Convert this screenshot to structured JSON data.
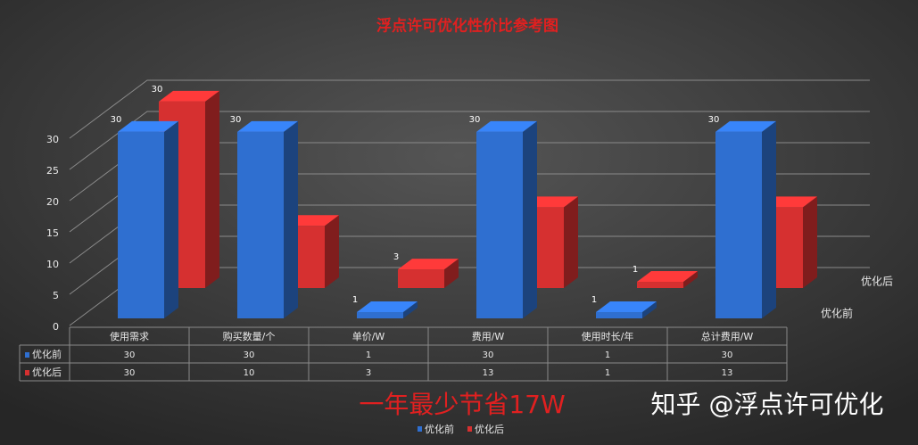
{
  "chart_data": {
    "type": "bar3d",
    "title": "浮点许可优化性价比参考图",
    "categories": [
      "使用需求",
      "购买数量/个",
      "单价/W",
      "费用/W",
      "使用时长/年",
      "总计费用/W"
    ],
    "series": [
      {
        "name": "优化前",
        "color": "#2f6fd0",
        "values": [
          30,
          30,
          1,
          30,
          1,
          30
        ]
      },
      {
        "name": "优化后",
        "color": "#d63030",
        "values": [
          30,
          10,
          3,
          13,
          1,
          13
        ]
      }
    ],
    "ylim": [
      0,
      30
    ],
    "yticks": [
      0,
      5,
      10,
      15,
      20,
      25,
      30
    ],
    "grid": true,
    "annotation": "一年最少节省17W"
  },
  "watermark": "知乎 @浮点许可优化"
}
